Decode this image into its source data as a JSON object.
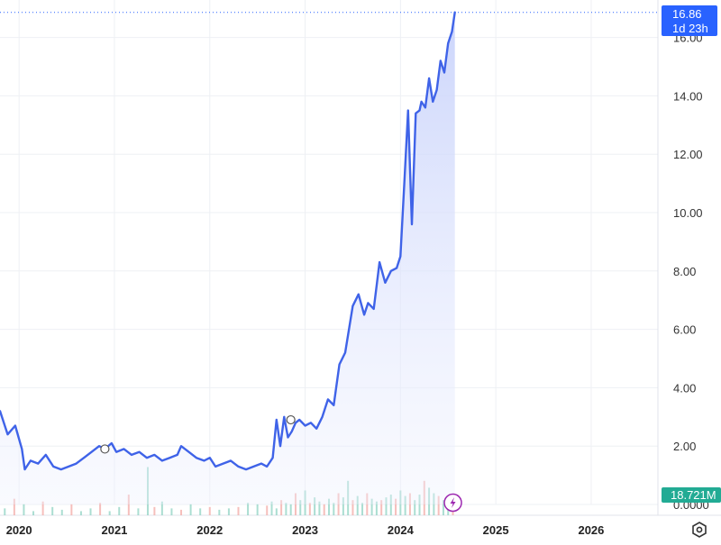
{
  "chart_data": {
    "type": "line",
    "x_ticks": [
      "2020",
      "2021",
      "2022",
      "2023",
      "2024",
      "2025",
      "2026"
    ],
    "y_ticks": [
      "2.00",
      "4.00",
      "6.00",
      "8.00",
      "10.00",
      "12.00",
      "14.00",
      "16.00"
    ],
    "y_zero_label": "0.0000",
    "ylim": [
      0,
      17.2
    ],
    "xlim": [
      2019.8,
      2026.7
    ],
    "grid": true,
    "last_price": "16.86",
    "countdown": "1d 23h",
    "volume_label": "18.721M",
    "series": [
      {
        "x": [
          2019.8,
          2019.88,
          2019.96,
          2020.03,
          2020.06,
          2020.12,
          2020.2,
          2020.28,
          2020.36,
          2020.44,
          2020.52,
          2020.6,
          2020.68,
          2020.76,
          2020.84,
          2020.9,
          2020.97,
          2021.02,
          2021.1,
          2021.18,
          2021.26,
          2021.34,
          2021.42,
          2021.5,
          2021.58,
          2021.66,
          2021.7,
          2021.78,
          2021.86,
          2021.94,
          2022.0,
          2022.06,
          2022.14,
          2022.22,
          2022.3,
          2022.38,
          2022.46,
          2022.54,
          2022.6,
          2022.66,
          2022.7,
          2022.74,
          2022.78,
          2022.82,
          2022.86,
          2022.9,
          2022.94,
          2023.0,
          2023.06,
          2023.12,
          2023.18,
          2023.24,
          2023.3,
          2023.36,
          2023.42,
          2023.5,
          2023.56,
          2023.62,
          2023.66,
          2023.72,
          2023.78,
          2023.84,
          2023.9,
          2023.96,
          2024.0,
          2024.04,
          2024.08,
          2024.12,
          2024.16,
          2024.2,
          2024.22,
          2024.26,
          2024.3,
          2024.34,
          2024.38,
          2024.42,
          2024.46,
          2024.5,
          2024.54,
          2024.57
        ],
        "y": [
          3.2,
          2.4,
          2.7,
          1.9,
          1.2,
          1.5,
          1.4,
          1.7,
          1.3,
          1.2,
          1.3,
          1.4,
          1.6,
          1.8,
          2.0,
          1.9,
          2.1,
          1.8,
          1.9,
          1.7,
          1.8,
          1.6,
          1.7,
          1.5,
          1.6,
          1.7,
          2.0,
          1.8,
          1.6,
          1.5,
          1.6,
          1.3,
          1.4,
          1.5,
          1.3,
          1.2,
          1.3,
          1.4,
          1.3,
          1.6,
          2.9,
          2.0,
          3.0,
          2.3,
          2.5,
          2.8,
          2.9,
          2.7,
          2.8,
          2.6,
          3.0,
          3.6,
          3.4,
          4.8,
          5.2,
          6.8,
          7.2,
          6.5,
          6.9,
          6.7,
          8.3,
          7.6,
          8.0,
          8.1,
          8.5,
          11.0,
          13.5,
          9.6,
          13.4,
          13.5,
          13.8,
          13.6,
          14.6,
          13.8,
          14.2,
          15.2,
          14.8,
          15.8,
          16.2,
          16.86
        ]
      }
    ],
    "volume": {
      "x": [
        2019.85,
        2019.95,
        2020.05,
        2020.15,
        2020.25,
        2020.35,
        2020.45,
        2020.55,
        2020.65,
        2020.75,
        2020.85,
        2020.95,
        2021.05,
        2021.15,
        2021.25,
        2021.35,
        2021.42,
        2021.5,
        2021.6,
        2021.7,
        2021.8,
        2021.9,
        2022.0,
        2022.1,
        2022.2,
        2022.3,
        2022.4,
        2022.5,
        2022.6,
        2022.65,
        2022.7,
        2022.75,
        2022.8,
        2022.85,
        2022.9,
        2022.95,
        2023.0,
        2023.05,
        2023.1,
        2023.15,
        2023.2,
        2023.25,
        2023.3,
        2023.35,
        2023.4,
        2023.45,
        2023.5,
        2023.55,
        2023.6,
        2023.65,
        2023.7,
        2023.75,
        2023.8,
        2023.85,
        2023.9,
        2023.95,
        2024.0,
        2024.05,
        2024.1,
        2024.15,
        2024.2,
        2024.25,
        2024.3,
        2024.35,
        2024.4,
        2024.45,
        2024.5,
        2024.55
      ],
      "values": [
        0.5,
        1.2,
        0.8,
        0.3,
        1.0,
        0.6,
        0.4,
        0.8,
        0.3,
        0.5,
        0.9,
        0.3,
        0.6,
        1.5,
        0.5,
        3.5,
        0.6,
        1.0,
        0.5,
        0.4,
        0.8,
        0.5,
        0.6,
        0.4,
        0.5,
        0.6,
        0.9,
        0.8,
        0.7,
        1.0,
        0.5,
        1.1,
        0.9,
        0.8,
        1.6,
        1.1,
        1.8,
        0.9,
        1.3,
        1.0,
        0.8,
        1.2,
        0.9,
        1.6,
        1.3,
        2.5,
        1.1,
        1.4,
        0.9,
        1.6,
        1.2,
        1.0,
        1.1,
        1.3,
        1.5,
        1.2,
        1.8,
        1.4,
        1.6,
        1.1,
        1.5,
        2.5,
        2.0,
        1.6,
        1.4,
        1.1,
        0.8,
        0.6
      ],
      "ylim": [
        0,
        8.5
      ]
    },
    "colors": {
      "line": "#3f63e8",
      "area_top": "#c9d3fb",
      "grid": "#eef0f4",
      "price_tag": "#2962ff",
      "volume_up": "#8fd3c3",
      "volume_down": "#f3a9a5",
      "volume_tag": "#22ab94",
      "event_marker": "#9c27b0"
    },
    "event_markers": [
      {
        "x": 2020.9,
        "y": 1.9
      },
      {
        "x": 2022.85,
        "y": 2.9
      }
    ],
    "flash_marker_x": 2024.55
  }
}
